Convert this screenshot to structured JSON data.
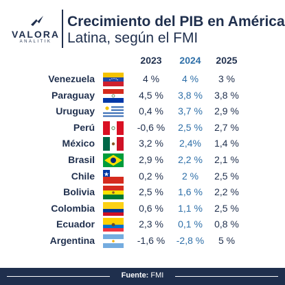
{
  "header": {
    "logo_text": "VALORA",
    "logo_sub": "ANALITIK",
    "title_line1": "Crecimiento del PIB en América",
    "title_line2": "Latina, según el FMI"
  },
  "chart_data": {
    "type": "table",
    "columns": [
      "2023",
      "2024",
      "2025"
    ],
    "highlight_column": "2024",
    "rows": [
      {
        "country": "Venezuela",
        "flag": "venezuela-flag",
        "values": [
          "4 %",
          "4 %",
          "3 %"
        ]
      },
      {
        "country": "Paraguay",
        "flag": "paraguay-flag",
        "values": [
          "4,5 %",
          "3,8 %",
          "3,8 %"
        ]
      },
      {
        "country": "Uruguay",
        "flag": "uruguay-flag",
        "values": [
          "0,4 %",
          "3,7 %",
          "2,9 %"
        ]
      },
      {
        "country": "Perú",
        "flag": "peru-flag",
        "values": [
          "-0,6 %",
          "2,5 %",
          "2,7 %"
        ]
      },
      {
        "country": "México",
        "flag": "mexico-flag",
        "values": [
          "3,2 %",
          "2,4%",
          "1,4 %"
        ]
      },
      {
        "country": "Brasil",
        "flag": "brazil-flag",
        "values": [
          "2,9 %",
          "2,2 %",
          "2,1 %"
        ]
      },
      {
        "country": "Chile",
        "flag": "chile-flag",
        "values": [
          "0,2 %",
          "2 %",
          "2,5 %"
        ]
      },
      {
        "country": "Bolivia",
        "flag": "bolivia-flag",
        "values": [
          "2,5 %",
          "1,6 %",
          "2,2 %"
        ]
      },
      {
        "country": "Colombia",
        "flag": "colombia-flag",
        "values": [
          "0,6 %",
          "1,1 %",
          "2,5 %"
        ]
      },
      {
        "country": "Ecuador",
        "flag": "ecuador-flag",
        "values": [
          "2,3 %",
          "0,1 %",
          "0,8 %"
        ]
      },
      {
        "country": "Argentina",
        "flag": "argentina-flag",
        "values": [
          "-1,6 %",
          "-2,8 %",
          "5 %"
        ]
      }
    ]
  },
  "footer": {
    "source_label": "Fuente:",
    "source_value": "FMI"
  },
  "colors": {
    "navy": "#1f2f4d",
    "highlight_blue": "#2e6fa8",
    "background": "#ffffff"
  }
}
